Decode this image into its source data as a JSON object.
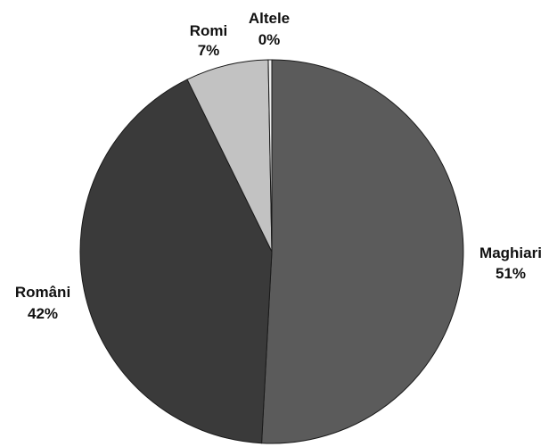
{
  "chart_data": {
    "type": "pie",
    "slices": [
      {
        "name": "Maghiari",
        "value": 51,
        "value_label": "51%",
        "color": "#5b5b5b"
      },
      {
        "name": "Români",
        "value": 42,
        "value_label": "42%",
        "color": "#3a3a3a"
      },
      {
        "name": "Romi",
        "value": 7,
        "value_label": "7%",
        "color": "#c2c2c2"
      },
      {
        "name": "Altele",
        "value": 0.3,
        "value_label": "0%",
        "color": "#ededed"
      }
    ],
    "start": "top",
    "direction": "clockwise",
    "legend": "none"
  }
}
